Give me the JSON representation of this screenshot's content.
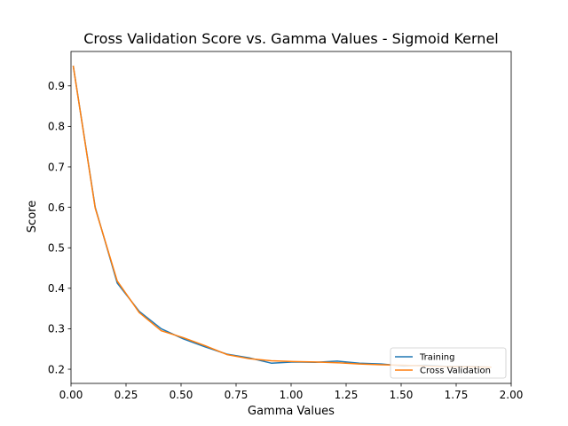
{
  "chart_data": {
    "type": "line",
    "title": "Cross Validation Score vs. Gamma Values - Sigmoid Kernel",
    "xlabel": "Gamma Values",
    "ylabel": "Score",
    "xlim": [
      0.0,
      2.0
    ],
    "ylim": [
      0.165,
      0.985
    ],
    "xticks": [
      0.0,
      0.25,
      0.5,
      0.75,
      1.0,
      1.25,
      1.5,
      1.75,
      2.0
    ],
    "xtick_labels": [
      "0.00",
      "0.25",
      "0.50",
      "0.75",
      "1.00",
      "1.25",
      "1.50",
      "1.75",
      "2.00"
    ],
    "yticks": [
      0.2,
      0.3,
      0.4,
      0.5,
      0.6,
      0.7,
      0.8,
      0.9
    ],
    "ytick_labels": [
      "0.2",
      "0.3",
      "0.4",
      "0.5",
      "0.6",
      "0.7",
      "0.8",
      "0.9"
    ],
    "grid": false,
    "legend_position": "bottom-right",
    "x": [
      0.01,
      0.11,
      0.21,
      0.31,
      0.41,
      0.51,
      0.61,
      0.71,
      0.81,
      0.91,
      1.01,
      1.11,
      1.21,
      1.31,
      1.41,
      1.51,
      1.61,
      1.71,
      1.81,
      1.91
    ],
    "series": [
      {
        "name": "Training",
        "color": "#1f77b4",
        "values": [
          0.95,
          0.6,
          0.413,
          0.343,
          0.3,
          0.275,
          0.255,
          0.237,
          0.228,
          0.215,
          0.218,
          0.217,
          0.22,
          0.215,
          0.213,
          0.208,
          0.21,
          0.207,
          0.207,
          0.205
        ]
      },
      {
        "name": "Cross Validation",
        "color": "#ff7f0e",
        "values": [
          0.95,
          0.598,
          0.418,
          0.34,
          0.295,
          0.278,
          0.258,
          0.236,
          0.226,
          0.221,
          0.219,
          0.218,
          0.216,
          0.213,
          0.211,
          0.21,
          0.208,
          0.206,
          0.206,
          0.205
        ]
      }
    ]
  }
}
